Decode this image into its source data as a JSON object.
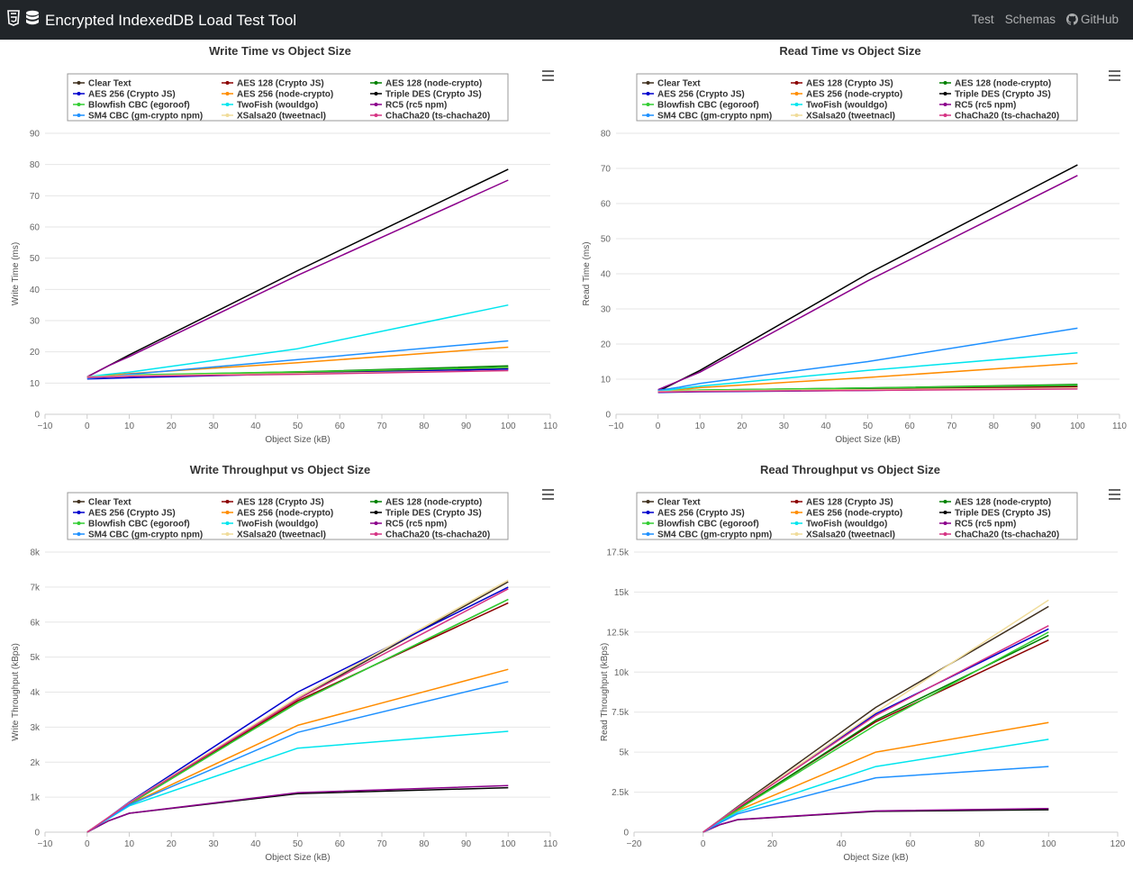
{
  "app": {
    "title": "Encrypted IndexedDB Load Test Tool"
  },
  "nav": {
    "test": "Test",
    "schemas": "Schemas",
    "github": "GitHub"
  },
  "legend": [
    {
      "name": "Clear Text",
      "color": "#3f2f1d"
    },
    {
      "name": "AES 128 (Crypto JS)",
      "color": "#8b0000"
    },
    {
      "name": "AES 128 (node-crypto)",
      "color": "#008000"
    },
    {
      "name": "AES 256 (Crypto JS)",
      "color": "#0000cd"
    },
    {
      "name": "AES 256 (node-crypto)",
      "color": "#ff8c00"
    },
    {
      "name": "Triple DES (Crypto JS)",
      "color": "#000000"
    },
    {
      "name": "Blowfish CBC (egoroof)",
      "color": "#32cd32"
    },
    {
      "name": "TwoFish (wouldgo)",
      "color": "#00e5ee"
    },
    {
      "name": "RC5 (rc5 npm)",
      "color": "#8b008b"
    },
    {
      "name": "SM4 CBC (gm-crypto npm)",
      "color": "#1e90ff"
    },
    {
      "name": "XSalsa20 (tweetnacl)",
      "color": "#f0dc9a"
    },
    {
      "name": "ChaCha20 (ts-chacha20)",
      "color": "#d63384"
    }
  ],
  "chart_data": [
    {
      "type": "line",
      "title": "Write Time vs Object Size",
      "xlabel": "Object Size (kB)",
      "ylabel": "Write Time (ms)",
      "xlim": [
        -10,
        110
      ],
      "ylim": [
        0,
        90
      ],
      "x_ticks": [
        -10,
        0,
        10,
        20,
        30,
        40,
        50,
        60,
        70,
        80,
        90,
        100,
        110
      ],
      "y_ticks": [
        0,
        10,
        20,
        30,
        40,
        50,
        60,
        70,
        80,
        90
      ],
      "y_tick_labels": [
        "0",
        "10",
        "20",
        "30",
        "40",
        "50",
        "60",
        "70",
        "80",
        "90"
      ],
      "grid": true,
      "legend": "top",
      "x": [
        0,
        5,
        10,
        50,
        100
      ],
      "series": [
        {
          "name": "Clear Text",
          "values": [
            12,
            12.2,
            12.3,
            13.2,
            14.5
          ]
        },
        {
          "name": "AES 128 (Crypto JS)",
          "values": [
            12,
            12.3,
            12.5,
            13.5,
            15
          ]
        },
        {
          "name": "AES 128 (node-crypto)",
          "values": [
            12,
            12.3,
            12.5,
            13.6,
            15.5
          ]
        },
        {
          "name": "AES 256 (Crypto JS)",
          "values": [
            11.3,
            11.5,
            11.7,
            13,
            14.5
          ]
        },
        {
          "name": "AES 256 (node-crypto)",
          "values": [
            12,
            12.5,
            13,
            16.5,
            21.5
          ]
        },
        {
          "name": "Triple DES (Crypto JS)",
          "values": [
            12,
            15.5,
            19,
            46,
            78.5
          ]
        },
        {
          "name": "Blowfish CBC (egoroof)",
          "values": [
            12,
            12.3,
            12.6,
            13.6,
            15
          ]
        },
        {
          "name": "TwoFish (wouldgo)",
          "values": [
            12,
            12.8,
            13.5,
            21,
            35
          ]
        },
        {
          "name": "RC5 (rc5 npm)",
          "values": [
            12,
            15.5,
            18.5,
            44.5,
            75
          ]
        },
        {
          "name": "SM4 CBC (gm-crypto npm)",
          "values": [
            11.5,
            12,
            12.8,
            17.5,
            23.5
          ]
        },
        {
          "name": "XSalsa20 (tweetnacl)",
          "values": [
            12,
            12.2,
            12.4,
            13,
            14
          ]
        },
        {
          "name": "ChaCha20 (ts-chacha20)",
          "values": [
            11.8,
            12,
            12.2,
            12.8,
            14
          ]
        }
      ]
    },
    {
      "type": "line",
      "title": "Read Time vs Object Size",
      "xlabel": "Object Size (kB)",
      "ylabel": "Read Time (ms)",
      "xlim": [
        -10,
        110
      ],
      "ylim": [
        0,
        80
      ],
      "x_ticks": [
        -10,
        0,
        10,
        20,
        30,
        40,
        50,
        60,
        70,
        80,
        90,
        100,
        110
      ],
      "y_ticks": [
        0,
        10,
        20,
        30,
        40,
        50,
        60,
        70,
        80
      ],
      "y_tick_labels": [
        "0",
        "10",
        "20",
        "30",
        "40",
        "50",
        "60",
        "70",
        "80"
      ],
      "grid": true,
      "legend": "top",
      "x": [
        0,
        5,
        10,
        50,
        100
      ],
      "series": [
        {
          "name": "Clear Text",
          "values": [
            6.5,
            6.6,
            6.7,
            7.2,
            8
          ]
        },
        {
          "name": "AES 128 (Crypto JS)",
          "values": [
            6.5,
            6.6,
            6.7,
            7,
            7.8
          ]
        },
        {
          "name": "AES 128 (node-crypto)",
          "values": [
            6.5,
            6.7,
            6.9,
            7.5,
            8.5
          ]
        },
        {
          "name": "AES 256 (Crypto JS)",
          "values": [
            6.2,
            6.3,
            6.4,
            6.8,
            7.5
          ]
        },
        {
          "name": "AES 256 (node-crypto)",
          "values": [
            6.5,
            7,
            7.6,
            10.5,
            14.5
          ]
        },
        {
          "name": "Triple DES (Crypto JS)",
          "values": [
            6.5,
            9.5,
            12.5,
            40,
            71
          ]
        },
        {
          "name": "Blowfish CBC (egoroof)",
          "values": [
            6.5,
            6.7,
            6.9,
            7.5,
            8.3
          ]
        },
        {
          "name": "TwoFish (wouldgo)",
          "values": [
            6.5,
            7.3,
            8,
            12.5,
            17.5
          ]
        },
        {
          "name": "RC5 (rc5 npm)",
          "values": [
            7,
            9.5,
            12,
            38,
            68
          ]
        },
        {
          "name": "SM4 CBC (gm-crypto npm)",
          "values": [
            6.8,
            7.7,
            8.8,
            15,
            24.5
          ]
        },
        {
          "name": "XSalsa20 (tweetnacl)",
          "values": [
            6.5,
            6.6,
            6.7,
            7,
            7.5
          ]
        },
        {
          "name": "ChaCha20 (ts-chacha20)",
          "values": [
            6.3,
            6.4,
            6.5,
            6.8,
            7.2
          ]
        }
      ]
    },
    {
      "type": "line",
      "title": "Write Throughput vs Object Size",
      "xlabel": "Object Size (kB)",
      "ylabel": "Write Throughput (kBps)",
      "xlim": [
        -10,
        110
      ],
      "ylim": [
        0,
        8000
      ],
      "x_ticks": [
        -10,
        0,
        10,
        20,
        30,
        40,
        50,
        60,
        70,
        80,
        90,
        100,
        110
      ],
      "y_ticks": [
        0,
        1000,
        2000,
        3000,
        4000,
        5000,
        6000,
        7000,
        8000
      ],
      "y_tick_labels": [
        "0",
        "1k",
        "2k",
        "3k",
        "4k",
        "5k",
        "6k",
        "7k",
        "8k"
      ],
      "grid": true,
      "legend": "top",
      "x": [
        0,
        5,
        10,
        50,
        100
      ],
      "series": [
        {
          "name": "Clear Text",
          "values": [
            0,
            410,
            830,
            3800,
            7150
          ]
        },
        {
          "name": "AES 128 (Crypto JS)",
          "values": [
            0,
            400,
            800,
            3750,
            6550
          ]
        },
        {
          "name": "AES 128 (node-crypto)",
          "values": [
            0,
            400,
            800,
            3700,
            6650
          ]
        },
        {
          "name": "AES 256 (Crypto JS)",
          "values": [
            0,
            420,
            860,
            4000,
            7000
          ]
        },
        {
          "name": "AES 256 (node-crypto)",
          "values": [
            0,
            400,
            790,
            3050,
            4650
          ]
        },
        {
          "name": "Triple DES (Crypto JS)",
          "values": [
            0,
            320,
            540,
            1100,
            1270
          ]
        },
        {
          "name": "Blowfish CBC (egoroof)",
          "values": [
            0,
            400,
            800,
            3700,
            6650
          ]
        },
        {
          "name": "TwoFish (wouldgo)",
          "values": [
            0,
            380,
            750,
            2400,
            2880
          ]
        },
        {
          "name": "RC5 (rc5 npm)",
          "values": [
            0,
            320,
            540,
            1130,
            1330
          ]
        },
        {
          "name": "SM4 CBC (gm-crypto npm)",
          "values": [
            0,
            390,
            780,
            2850,
            4300
          ]
        },
        {
          "name": "XSalsa20 (tweetnacl)",
          "values": [
            0,
            420,
            840,
            3850,
            7200
          ]
        },
        {
          "name": "ChaCha20 (ts-chacha20)",
          "values": [
            0,
            415,
            830,
            3800,
            6950
          ]
        }
      ]
    },
    {
      "type": "line",
      "title": "Read Throughput vs Object Size",
      "xlabel": "Object Size (kB)",
      "ylabel": "Read Throughput (kBps)",
      "xlim": [
        -20,
        120
      ],
      "ylim": [
        0,
        17500
      ],
      "x_ticks": [
        -20,
        0,
        20,
        40,
        60,
        80,
        100,
        120
      ],
      "y_ticks": [
        0,
        2500,
        5000,
        7500,
        10000,
        12500,
        15000,
        17500
      ],
      "y_tick_labels": [
        "0",
        "2.5k",
        "5k",
        "7.5k",
        "10k",
        "12.5k",
        "15k",
        "17.5k"
      ],
      "grid": true,
      "legend": "top",
      "x": [
        0,
        5,
        10,
        50,
        100
      ],
      "series": [
        {
          "name": "Clear Text",
          "values": [
            0,
            800,
            1600,
            7800,
            14100
          ]
        },
        {
          "name": "AES 128 (Crypto JS)",
          "values": [
            0,
            750,
            1450,
            6900,
            12000
          ]
        },
        {
          "name": "AES 128 (node-crypto)",
          "values": [
            0,
            740,
            1400,
            7000,
            12300
          ]
        },
        {
          "name": "AES 256 (Crypto JS)",
          "values": [
            0,
            780,
            1550,
            7400,
            12700
          ]
        },
        {
          "name": "AES 256 (node-crypto)",
          "values": [
            0,
            700,
            1350,
            5000,
            6850
          ]
        },
        {
          "name": "Triple DES (Crypto JS)",
          "values": [
            0,
            480,
            780,
            1300,
            1400
          ]
        },
        {
          "name": "Blowfish CBC (egoroof)",
          "values": [
            0,
            720,
            1400,
            6700,
            12500
          ]
        },
        {
          "name": "TwoFish (wouldgo)",
          "values": [
            0,
            650,
            1250,
            4100,
            5800
          ]
        },
        {
          "name": "RC5 (rc5 npm)",
          "values": [
            0,
            480,
            790,
            1330,
            1480
          ]
        },
        {
          "name": "SM4 CBC (gm-crypto npm)",
          "values": [
            0,
            600,
            1150,
            3400,
            4100
          ]
        },
        {
          "name": "XSalsa20 (tweetnacl)",
          "values": [
            0,
            780,
            1550,
            7500,
            14500
          ]
        },
        {
          "name": "ChaCha20 (ts-chacha20)",
          "values": [
            0,
            770,
            1530,
            7300,
            12900
          ]
        }
      ]
    }
  ]
}
